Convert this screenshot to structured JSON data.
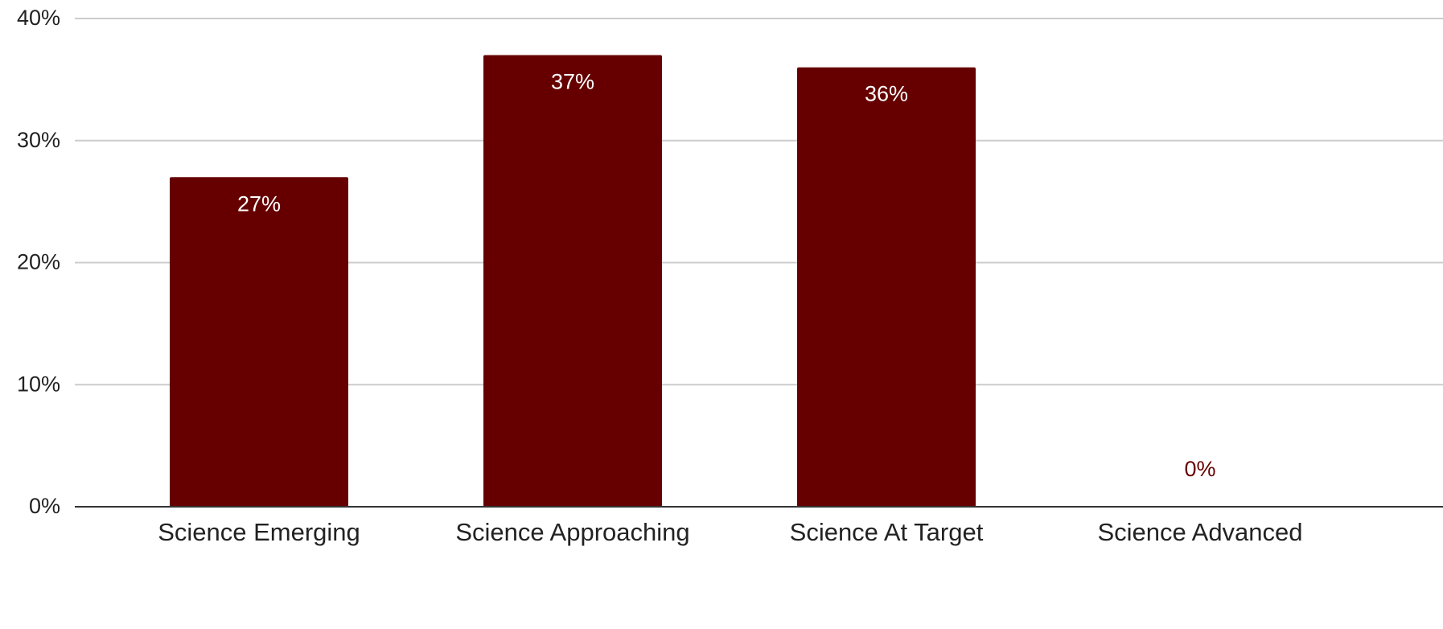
{
  "chart_data": {
    "type": "bar",
    "title": "",
    "xlabel": "",
    "ylabel": "",
    "categories": [
      "Science Emerging",
      "Science Approaching",
      "Science At Target",
      "Science Advanced"
    ],
    "values": [
      27,
      37,
      36,
      0
    ],
    "data_labels": [
      "27%",
      "37%",
      "36%",
      "0%"
    ],
    "ylim": [
      0,
      40
    ],
    "yticks": [
      0,
      10,
      20,
      30,
      40
    ],
    "ytick_labels": [
      "0%",
      "10%",
      "20%",
      "30%",
      "40%"
    ],
    "grid": true,
    "legend": "none",
    "colors": {
      "bar": "#660000",
      "label_inside": "#ffffff",
      "label_outside": "#660000",
      "gridline": "#cccccc",
      "axis": "#333333",
      "text": "#222222"
    }
  }
}
